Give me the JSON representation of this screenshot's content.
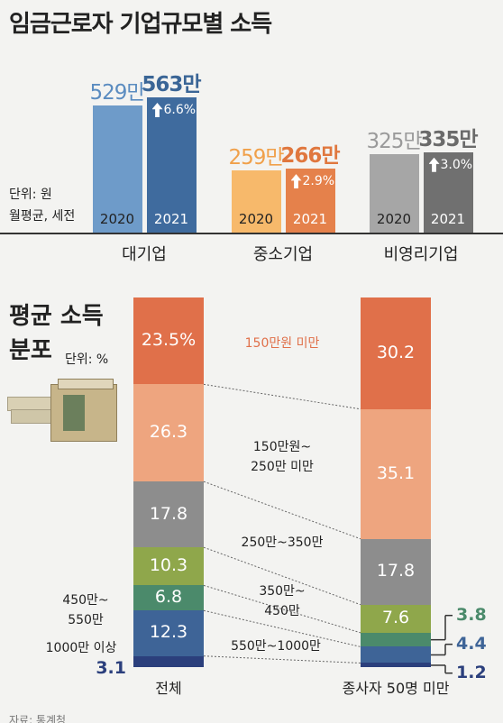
{
  "chart_data": [
    {
      "type": "bar",
      "title": "임금근로자 기업규모별 소득",
      "unit_note": [
        "단위: 원",
        "월평균, 세전"
      ],
      "categories": [
        "대기업",
        "중소기업",
        "비영리기업"
      ],
      "series": [
        {
          "name": "2020",
          "colors": [
            "#6e9bc9",
            "#f7b96b",
            "#a6a6a6"
          ],
          "label_colors": [
            "#5b8cc0",
            "#f0a04a",
            "#9a9a9a"
          ],
          "values": [
            529,
            259,
            325
          ],
          "value_labels": [
            "529만",
            "259만",
            "325만"
          ]
        },
        {
          "name": "2021",
          "colors": [
            "#3f6b9e",
            "#e5814b",
            "#707070"
          ],
          "label_colors": [
            "#3a6596",
            "#e0773e",
            "#6a6a6a"
          ],
          "values": [
            563,
            266,
            335
          ],
          "value_labels": [
            "563만",
            "266만",
            "335만"
          ]
        }
      ],
      "growth": {
        "values": [
          6.6,
          2.9,
          3.0
        ],
        "value_labels": [
          "6.6%",
          "2.9%",
          "3.0%"
        ]
      }
    },
    {
      "type": "bar",
      "stacked": true,
      "title": "평균 소득\n분포",
      "unit": "단위: %",
      "categories": [
        "전체",
        "종사자 50명 미만"
      ],
      "series": [
        {
          "name": "150만원 미만",
          "color": "#e0704a",
          "values": [
            23.5,
            30.2
          ],
          "value_labels": [
            "23.5%",
            "30.2"
          ]
        },
        {
          "name": "150만원~\n250만 미만",
          "color": "#eea57f",
          "values": [
            26.3,
            35.1
          ]
        },
        {
          "name": "250만~350만",
          "color": "#8d8d8d",
          "values": [
            17.8,
            17.8
          ]
        },
        {
          "name": "350만~\n450만",
          "color": "#8fa74b",
          "values": [
            10.3,
            7.6
          ]
        },
        {
          "name": "450만~\n550만",
          "color": "#4b8a6b",
          "values": [
            6.8,
            3.8
          ]
        },
        {
          "name": "550만~1000만",
          "color": "#3e6497",
          "values": [
            12.3,
            4.4
          ]
        },
        {
          "name": "1000만 이상",
          "color": "#2b3f7c",
          "values": [
            3.1,
            1.2
          ]
        }
      ]
    }
  ],
  "source": "자료: 통계청"
}
